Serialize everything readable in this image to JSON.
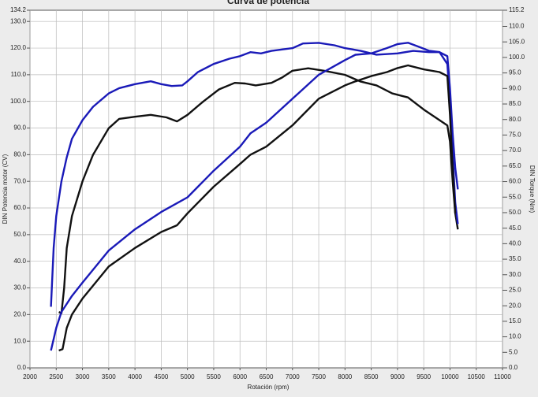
{
  "chart_data": {
    "type": "line",
    "title": "Curva de potencia",
    "x_label": "Rotación (rpm)",
    "y_label": "DIN Potencia motor (CV)",
    "y2_label": "DIN Torque (Nm)",
    "grid": true,
    "xlim": [
      2000,
      11000
    ],
    "xticks": [
      2000,
      2500,
      3000,
      3500,
      4000,
      4500,
      5000,
      5500,
      6000,
      6500,
      7000,
      7500,
      8000,
      8500,
      9000,
      9500,
      10000,
      10500,
      11000
    ],
    "ylim": [
      0,
      134.2
    ],
    "yticks": [
      {
        "value": 0,
        "label": "0.0"
      },
      {
        "value": 10,
        "label": "10.0"
      },
      {
        "value": 20,
        "label": "20.0"
      },
      {
        "value": 30,
        "label": "30.0"
      },
      {
        "value": 40,
        "label": "40.0"
      },
      {
        "value": 50,
        "label": "50.0"
      },
      {
        "value": 60,
        "label": "60.0"
      },
      {
        "value": 70,
        "label": "70.0"
      },
      {
        "value": 80,
        "label": "80.0"
      },
      {
        "value": 90,
        "label": "90.0"
      },
      {
        "value": 100,
        "label": "100.0"
      },
      {
        "value": 110,
        "label": "110.0"
      },
      {
        "value": 120,
        "label": "120.0"
      },
      {
        "value": 130,
        "label": "130.0"
      },
      134.2
    ],
    "y2lim": [
      0,
      115.2
    ],
    "y2ticks": [
      {
        "value": 0,
        "label": "0.0"
      },
      {
        "value": 5,
        "label": "5.0"
      },
      {
        "value": 10,
        "label": "10.0"
      },
      {
        "value": 15,
        "label": "15.0"
      },
      {
        "value": 20,
        "label": "20.0"
      },
      {
        "value": 25,
        "label": "25.0"
      },
      {
        "value": 30,
        "label": "30.0"
      },
      {
        "value": 35,
        "label": "35.0"
      },
      {
        "value": 40,
        "label": "40.0"
      },
      {
        "value": 45,
        "label": "45.0"
      },
      {
        "value": 50,
        "label": "50.0"
      },
      {
        "value": 55,
        "label": "55.0"
      },
      {
        "value": 60,
        "label": "60.0"
      },
      {
        "value": 65,
        "label": "65.0"
      },
      {
        "value": 70,
        "label": "70.0"
      },
      {
        "value": 75,
        "label": "75.0"
      },
      {
        "value": 80,
        "label": "80.0"
      },
      {
        "value": 85,
        "label": "85.0"
      },
      {
        "value": 90,
        "label": "90.0"
      },
      {
        "value": 95,
        "label": "95.0"
      },
      {
        "value": 100,
        "label": "100.0"
      },
      {
        "value": 105,
        "label": "105.0"
      },
      {
        "value": 110,
        "label": "110.0"
      },
      115.2
    ],
    "series": [
      {
        "color": "#1a1ab8",
        "axis": "y2",
        "x": [
          2400,
          2450,
          2500,
          2600,
          2700,
          2800,
          3000,
          3200,
          3500,
          3700,
          4000,
          4300,
          4500,
          4700,
          4900,
          5000,
          5200,
          5500,
          5800,
          6000,
          6200,
          6400,
          6600,
          7000,
          7200,
          7500,
          7800,
          8000,
          8300,
          8600,
          9000,
          9300,
          9600,
          9800,
          9950,
          10000,
          10050,
          10100,
          10150
        ],
        "values": [
          19.7,
          38.6,
          48.9,
          60.1,
          67.8,
          73.8,
          79.8,
          84.1,
          88.4,
          90.1,
          91.4,
          92.3,
          91.4,
          90.8,
          91.0,
          92.3,
          95.3,
          97.9,
          99.6,
          100.4,
          101.7,
          101.3,
          102.1,
          103.0,
          104.5,
          104.7,
          103.9,
          103.0,
          102.1,
          100.9,
          101.3,
          102.1,
          101.7,
          101.7,
          100.4,
          90.1,
          75.5,
          64.4,
          57.5
        ]
      },
      {
        "color": "#111111",
        "axis": "y2",
        "x": [
          2550,
          2600,
          2650,
          2700,
          2800,
          3000,
          3200,
          3500,
          3700,
          4000,
          4300,
          4600,
          4800,
          5000,
          5300,
          5600,
          5900,
          6100,
          6300,
          6600,
          6800,
          7000,
          7300,
          7600,
          8000,
          8300,
          8600,
          8900,
          9200,
          9500,
          9800,
          9950,
          10000,
          10050,
          10100,
          10150
        ],
        "values": [
          18.0,
          17.6,
          25.7,
          38.6,
          48.9,
          60.1,
          68.6,
          77.2,
          80.2,
          80.9,
          81.5,
          80.7,
          79.4,
          81.5,
          85.8,
          89.7,
          91.8,
          91.6,
          91.0,
          91.8,
          93.5,
          95.7,
          96.5,
          95.7,
          94.4,
          92.2,
          91.0,
          88.4,
          87.1,
          83.2,
          79.8,
          78.1,
          72.9,
          60.1,
          49.8,
          44.6
        ]
      },
      {
        "color": "#1a1ab8",
        "x": [
          2400,
          2500,
          2600,
          2800,
          3000,
          3500,
          4000,
          4500,
          5000,
          5500,
          6000,
          6200,
          6500,
          7000,
          7500,
          8000,
          8200,
          8500,
          8800,
          9000,
          9200,
          9400,
          9600,
          9800,
          9950,
          10000,
          10050,
          10100,
          10150
        ],
        "values": [
          6.5,
          15,
          21,
          27,
          32,
          44,
          52,
          58.5,
          64,
          74,
          83,
          88,
          92,
          101,
          110,
          115.5,
          117.5,
          118,
          120,
          121.5,
          122,
          120.5,
          119,
          118.5,
          114,
          100,
          80,
          62,
          54
        ]
      },
      {
        "color": "#111111",
        "x": [
          2550,
          2620,
          2700,
          2800,
          3000,
          3500,
          4000,
          4500,
          4800,
          5000,
          5500,
          6000,
          6200,
          6500,
          7000,
          7500,
          8000,
          8200,
          8500,
          8800,
          9000,
          9200,
          9500,
          9800,
          9950,
          10000,
          10050,
          10100
        ],
        "values": [
          6.5,
          7,
          15,
          20,
          26,
          38,
          45,
          51,
          53.5,
          58,
          68,
          76.5,
          80,
          83,
          91,
          101,
          106,
          107.5,
          109.5,
          111,
          112.5,
          113.5,
          112,
          111,
          109.5,
          95,
          75,
          58
        ]
      }
    ]
  }
}
